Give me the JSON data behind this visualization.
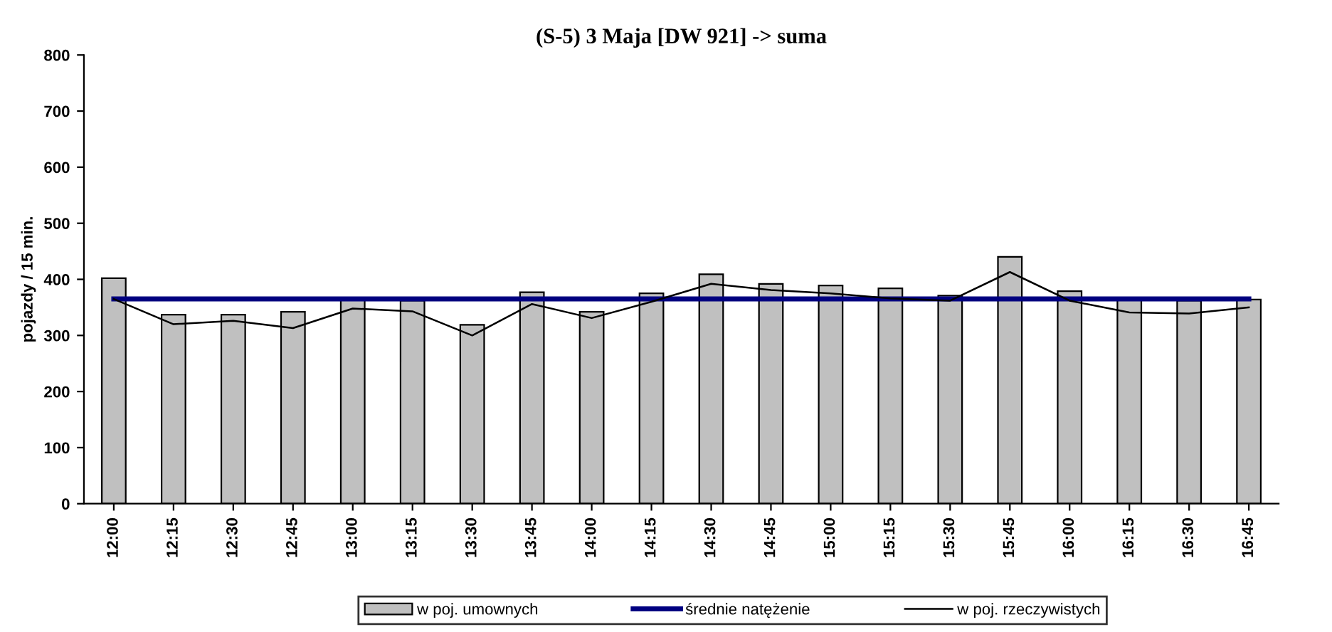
{
  "chart_data": {
    "type": "bar",
    "title": "(S-5) 3 Maja [DW 921] -> suma",
    "ylabel": "pojazdy / 15 min.",
    "categories": [
      "12:00",
      "12:15",
      "12:30",
      "12:45",
      "13:00",
      "13:15",
      "13:30",
      "13:45",
      "14:00",
      "14:15",
      "14:30",
      "14:45",
      "15:00",
      "15:15",
      "15:30",
      "15:45",
      "16:00",
      "16:15",
      "16:30",
      "16:45"
    ],
    "series": [
      {
        "name": "w poj. umownych",
        "color": "#c0c0c0",
        "values": [
          402,
          337,
          337,
          342,
          367,
          362,
          319,
          377,
          342,
          375,
          409,
          392,
          389,
          384,
          371,
          440,
          379,
          366,
          362,
          364
        ]
      },
      {
        "name": "średnie natężenie",
        "type": "line",
        "color": "#000080",
        "values": [
          365,
          365,
          365,
          365,
          365,
          365,
          365,
          365,
          365,
          365,
          365,
          365,
          365,
          365,
          365,
          365,
          365,
          365,
          365,
          365
        ]
      },
      {
        "name": "w poj. rzeczywistych",
        "type": "line",
        "color": "#000000",
        "values": [
          365,
          320,
          326,
          313,
          348,
          343,
          300,
          356,
          331,
          360,
          392,
          381,
          375,
          366,
          362,
          413,
          362,
          341,
          339,
          350
        ]
      }
    ],
    "ylim": [
      0,
      800
    ],
    "yticks": [
      0,
      100,
      200,
      300,
      400,
      500,
      600,
      700,
      800
    ],
    "grid": false,
    "legend": "bottom",
    "marker": "none"
  }
}
